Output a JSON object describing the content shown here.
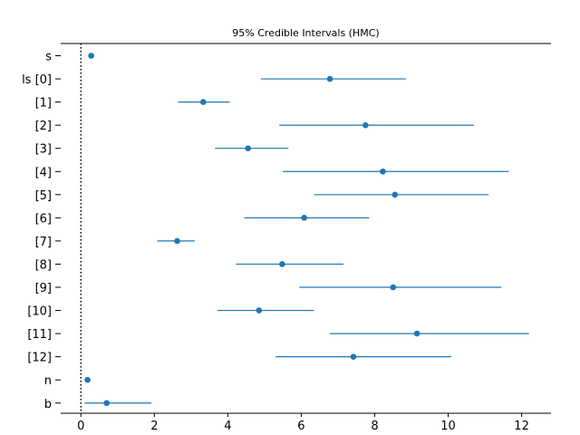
{
  "chart_data": {
    "type": "scatter",
    "title": "95% Credible Intervals (HMC)",
    "xlabel": "",
    "ylabel": "",
    "xlim": [
      -0.55,
      12.8
    ],
    "xticks": [
      0,
      2,
      4,
      6,
      8,
      10,
      12
    ],
    "xtick_labels": [
      "0",
      "2",
      "4",
      "6",
      "8",
      "10",
      "12"
    ],
    "reference_line": {
      "x": 0,
      "style": "dotted"
    },
    "grid": false,
    "colors": {
      "marker": "#1f77b4",
      "interval": "#1f77b4",
      "reference": "#000000"
    },
    "parameters": [
      {
        "label": "s",
        "mean": 0.28,
        "lower": null,
        "upper": null
      },
      {
        "label": "ls [0]",
        "mean": 6.78,
        "lower": 4.9,
        "upper": 8.85
      },
      {
        "label": "[1]",
        "mean": 3.33,
        "lower": 2.65,
        "upper": 4.05
      },
      {
        "label": "[2]",
        "mean": 7.75,
        "lower": 5.4,
        "upper": 10.7
      },
      {
        "label": "[3]",
        "mean": 4.55,
        "lower": 3.65,
        "upper": 5.65
      },
      {
        "label": "[4]",
        "mean": 8.22,
        "lower": 5.5,
        "upper": 11.65
      },
      {
        "label": "[5]",
        "mean": 8.55,
        "lower": 6.35,
        "upper": 11.1
      },
      {
        "label": "[6]",
        "mean": 6.08,
        "lower": 4.45,
        "upper": 7.85
      },
      {
        "label": "[7]",
        "mean": 2.62,
        "lower": 2.08,
        "upper": 3.1
      },
      {
        "label": "[8]",
        "mean": 5.48,
        "lower": 4.22,
        "upper": 7.15
      },
      {
        "label": "[9]",
        "mean": 8.5,
        "lower": 5.95,
        "upper": 11.45
      },
      {
        "label": "[10]",
        "mean": 4.85,
        "lower": 3.72,
        "upper": 6.35
      },
      {
        "label": "[11]",
        "mean": 9.15,
        "lower": 6.78,
        "upper": 12.2
      },
      {
        "label": "[12]",
        "mean": 7.42,
        "lower": 5.3,
        "upper": 10.08
      },
      {
        "label": "n",
        "mean": 0.18,
        "lower": null,
        "upper": null
      },
      {
        "label": "b",
        "mean": 0.7,
        "lower": 0.1,
        "upper": 1.92
      }
    ]
  }
}
